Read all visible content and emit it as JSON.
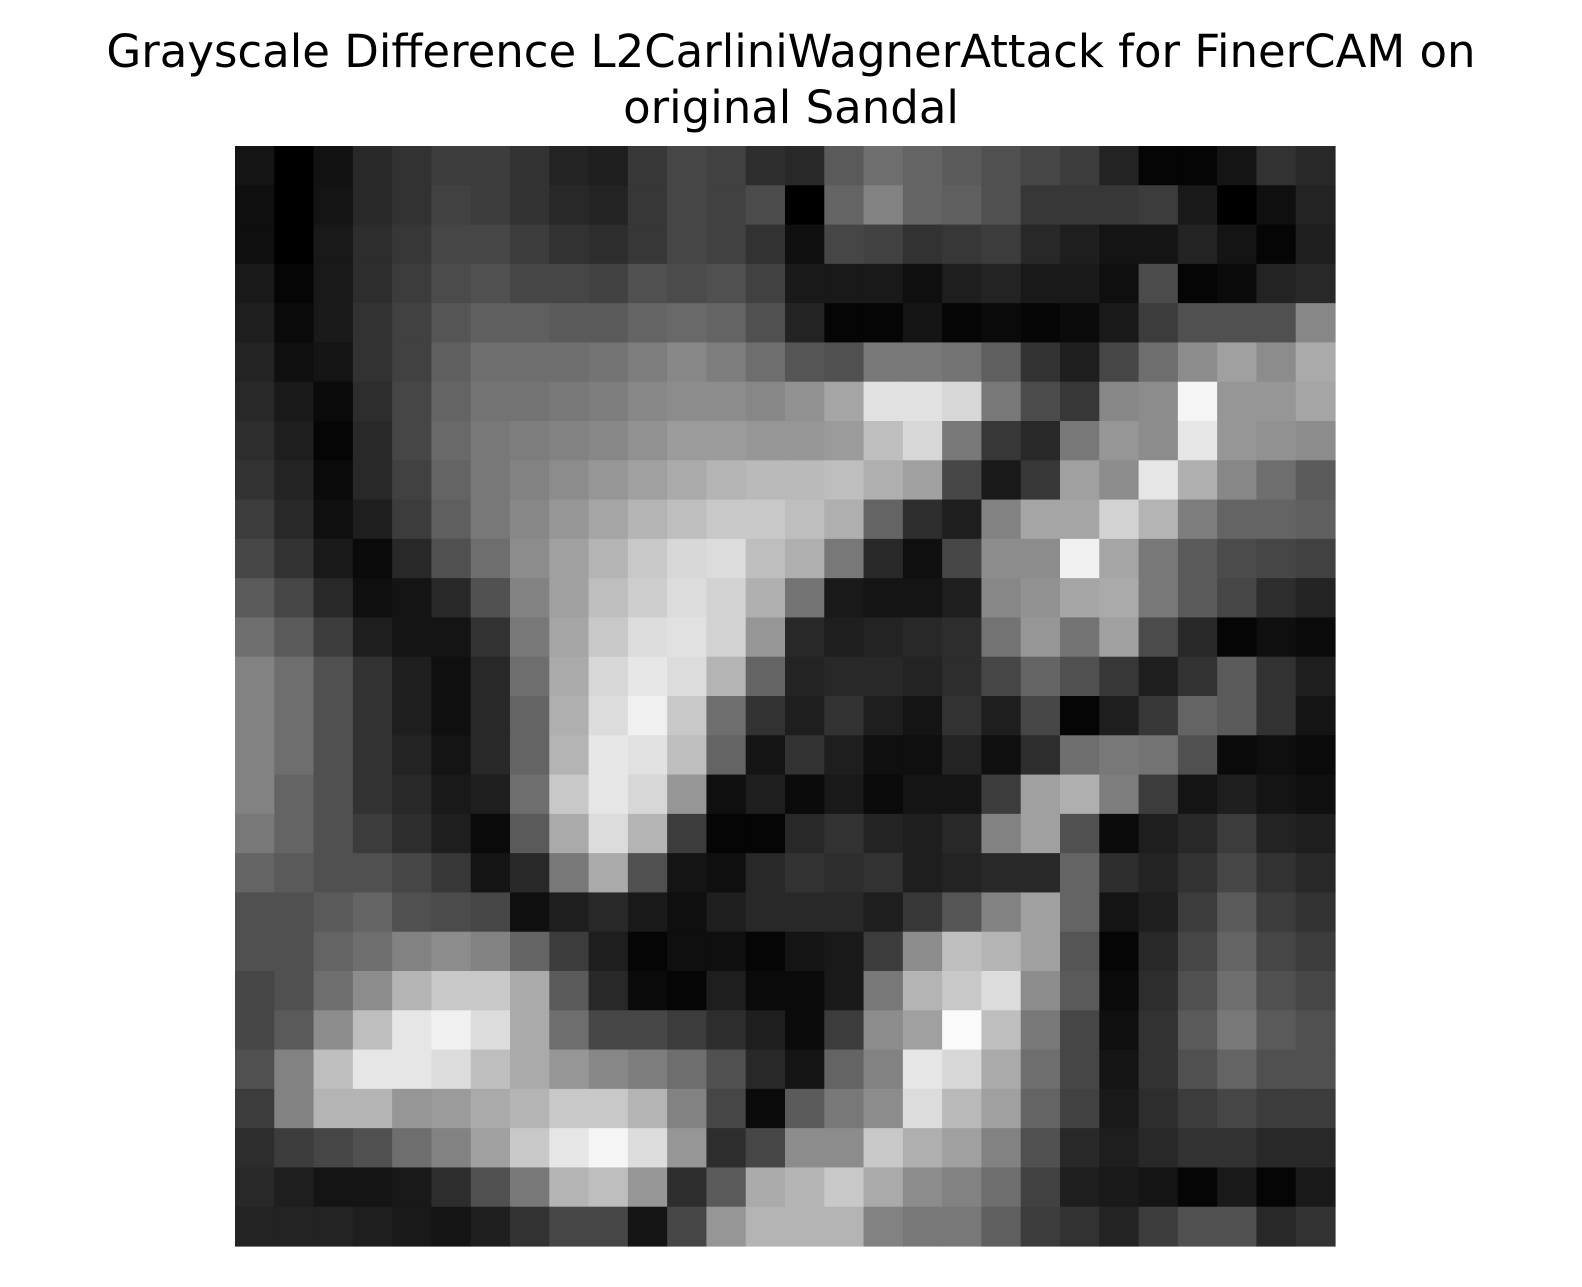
{
  "chart_data": {
    "type": "heatmap",
    "title_lines": [
      "Grayscale Difference L2CarliniWagnerAttack for FinerCAM on",
      "original Sandal"
    ],
    "colormap": "gray",
    "axes_visible": false,
    "grid": false,
    "rows": 28,
    "cols": 28,
    "value_range": [
      0,
      255
    ],
    "values": [
      [
        20,
        0,
        18,
        40,
        50,
        60,
        60,
        50,
        35,
        30,
        55,
        70,
        65,
        45,
        40,
        90,
        110,
        100,
        90,
        80,
        70,
        60,
        35,
        5,
        5,
        20,
        50,
        40
      ],
      [
        15,
        0,
        20,
        40,
        50,
        65,
        60,
        50,
        40,
        35,
        55,
        70,
        65,
        75,
        0,
        100,
        130,
        100,
        95,
        80,
        55,
        55,
        55,
        60,
        25,
        0,
        15,
        35
      ],
      [
        15,
        0,
        25,
        45,
        55,
        70,
        70,
        60,
        50,
        45,
        55,
        70,
        65,
        50,
        15,
        70,
        65,
        50,
        55,
        60,
        40,
        30,
        20,
        20,
        35,
        20,
        5,
        30
      ],
      [
        25,
        5,
        25,
        45,
        60,
        75,
        80,
        70,
        70,
        65,
        80,
        75,
        80,
        65,
        25,
        25,
        25,
        15,
        30,
        35,
        25,
        25,
        15,
        75,
        5,
        10,
        35,
        40
      ],
      [
        30,
        10,
        25,
        50,
        65,
        85,
        95,
        95,
        90,
        90,
        100,
        105,
        100,
        80,
        35,
        5,
        5,
        20,
        5,
        10,
        5,
        10,
        25,
        60,
        80,
        80,
        80,
        135
      ],
      [
        35,
        15,
        20,
        50,
        65,
        95,
        110,
        110,
        110,
        115,
        125,
        135,
        125,
        110,
        85,
        80,
        120,
        120,
        115,
        95,
        50,
        30,
        70,
        110,
        140,
        160,
        140,
        170
      ],
      [
        40,
        25,
        10,
        45,
        70,
        100,
        115,
        115,
        120,
        125,
        135,
        140,
        140,
        135,
        145,
        165,
        225,
        225,
        215,
        120,
        75,
        55,
        135,
        140,
        245,
        150,
        150,
        165
      ],
      [
        45,
        30,
        5,
        40,
        70,
        105,
        120,
        125,
        130,
        135,
        145,
        155,
        155,
        150,
        150,
        155,
        190,
        215,
        120,
        55,
        40,
        120,
        150,
        140,
        230,
        150,
        145,
        140
      ],
      [
        50,
        35,
        10,
        40,
        65,
        100,
        120,
        130,
        140,
        150,
        160,
        170,
        180,
        185,
        185,
        190,
        175,
        160,
        70,
        25,
        55,
        160,
        140,
        230,
        175,
        135,
        110,
        90
      ],
      [
        60,
        40,
        15,
        30,
        60,
        95,
        120,
        135,
        150,
        165,
        180,
        190,
        200,
        200,
        190,
        175,
        100,
        45,
        30,
        130,
        165,
        165,
        210,
        180,
        125,
        100,
        100,
        95
      ],
      [
        70,
        50,
        25,
        10,
        40,
        80,
        110,
        140,
        160,
        180,
        200,
        215,
        220,
        190,
        175,
        120,
        40,
        15,
        70,
        140,
        140,
        240,
        165,
        120,
        90,
        75,
        70,
        65
      ],
      [
        90,
        70,
        40,
        15,
        20,
        40,
        80,
        130,
        160,
        190,
        205,
        220,
        210,
        175,
        115,
        25,
        20,
        20,
        30,
        135,
        145,
        165,
        170,
        120,
        90,
        70,
        45,
        35
      ],
      [
        110,
        90,
        60,
        30,
        20,
        20,
        50,
        120,
        165,
        200,
        220,
        225,
        210,
        150,
        40,
        30,
        35,
        40,
        45,
        115,
        150,
        115,
        160,
        75,
        40,
        5,
        15,
        10
      ],
      [
        130,
        110,
        80,
        50,
        30,
        15,
        40,
        110,
        170,
        215,
        230,
        220,
        180,
        100,
        35,
        40,
        40,
        35,
        45,
        70,
        100,
        80,
        55,
        30,
        50,
        90,
        50,
        30
      ],
      [
        130,
        110,
        80,
        50,
        30,
        15,
        40,
        100,
        175,
        220,
        240,
        200,
        110,
        50,
        30,
        50,
        30,
        20,
        50,
        30,
        70,
        5,
        30,
        55,
        100,
        90,
        50,
        20
      ],
      [
        130,
        110,
        80,
        50,
        35,
        20,
        40,
        100,
        180,
        230,
        225,
        190,
        100,
        20,
        50,
        30,
        15,
        15,
        35,
        15,
        45,
        110,
        120,
        115,
        80,
        10,
        15,
        10
      ],
      [
        130,
        100,
        80,
        50,
        40,
        25,
        30,
        110,
        200,
        230,
        215,
        150,
        15,
        30,
        10,
        25,
        10,
        20,
        20,
        60,
        160,
        175,
        125,
        60,
        20,
        30,
        20,
        15
      ],
      [
        120,
        100,
        80,
        60,
        45,
        30,
        10,
        90,
        170,
        220,
        180,
        60,
        5,
        5,
        40,
        50,
        35,
        30,
        40,
        130,
        160,
        80,
        10,
        30,
        40,
        60,
        35,
        30
      ],
      [
        100,
        90,
        80,
        80,
        70,
        55,
        20,
        40,
        120,
        170,
        80,
        20,
        15,
        40,
        50,
        45,
        50,
        30,
        35,
        40,
        40,
        100,
        45,
        35,
        50,
        70,
        50,
        40
      ],
      [
        80,
        80,
        90,
        100,
        80,
        75,
        70,
        15,
        30,
        40,
        25,
        15,
        30,
        40,
        40,
        40,
        30,
        55,
        85,
        130,
        160,
        100,
        20,
        30,
        60,
        90,
        60,
        50
      ],
      [
        80,
        80,
        100,
        110,
        130,
        140,
        130,
        100,
        60,
        30,
        5,
        15,
        15,
        5,
        20,
        25,
        60,
        140,
        190,
        180,
        160,
        85,
        5,
        40,
        70,
        100,
        70,
        60
      ],
      [
        70,
        80,
        110,
        140,
        180,
        200,
        200,
        170,
        90,
        40,
        10,
        5,
        30,
        10,
        10,
        25,
        120,
        180,
        200,
        220,
        140,
        90,
        10,
        45,
        80,
        110,
        80,
        70
      ],
      [
        70,
        90,
        140,
        190,
        230,
        240,
        220,
        170,
        110,
        70,
        70,
        60,
        45,
        30,
        10,
        60,
        140,
        160,
        250,
        190,
        120,
        70,
        15,
        50,
        90,
        120,
        90,
        80
      ],
      [
        80,
        130,
        190,
        230,
        230,
        220,
        190,
        170,
        150,
        135,
        125,
        110,
        80,
        40,
        20,
        100,
        130,
        230,
        215,
        170,
        110,
        70,
        20,
        50,
        80,
        100,
        80,
        80
      ],
      [
        60,
        130,
        180,
        180,
        150,
        155,
        170,
        180,
        200,
        200,
        180,
        130,
        70,
        10,
        90,
        120,
        140,
        220,
        185,
        160,
        100,
        65,
        25,
        45,
        60,
        70,
        60,
        60
      ],
      [
        45,
        60,
        70,
        80,
        110,
        130,
        160,
        200,
        230,
        245,
        220,
        150,
        45,
        70,
        140,
        140,
        200,
        175,
        160,
        130,
        80,
        40,
        30,
        40,
        50,
        50,
        40,
        40
      ],
      [
        40,
        30,
        20,
        20,
        25,
        45,
        80,
        120,
        180,
        190,
        150,
        45,
        90,
        170,
        180,
        200,
        170,
        140,
        130,
        110,
        65,
        30,
        25,
        20,
        5,
        25,
        5,
        25
      ],
      [
        35,
        35,
        35,
        30,
        25,
        20,
        30,
        50,
        70,
        70,
        20,
        70,
        150,
        180,
        180,
        180,
        130,
        120,
        120,
        95,
        60,
        50,
        35,
        60,
        80,
        80,
        40,
        50
      ]
    ]
  }
}
